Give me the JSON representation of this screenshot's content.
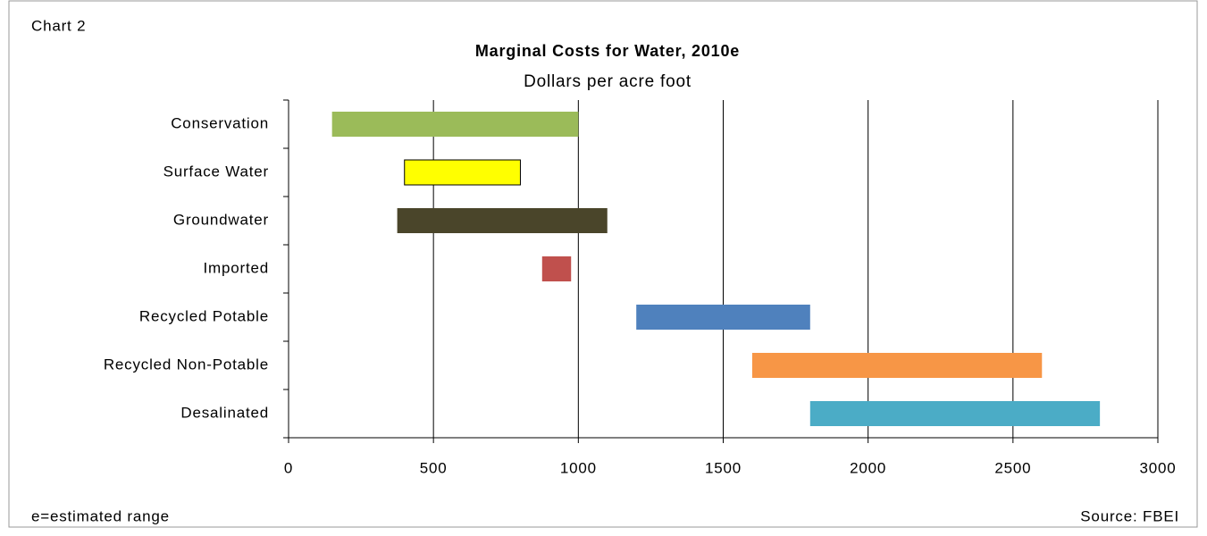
{
  "chart_data": {
    "type": "floating_bar",
    "label": "Chart 2",
    "title": "Marginal Costs for Water, 2010e",
    "subtitle": "Dollars per acre foot",
    "categories": [
      "Conservation",
      "Surface Water",
      "Groundwater",
      "Imported",
      "Recycled Potable",
      "Recycled Non-Potable",
      "Desalinated"
    ],
    "values": [
      [
        150,
        1000
      ],
      [
        400,
        800
      ],
      [
        375,
        1100
      ],
      [
        875,
        975
      ],
      [
        1200,
        1800
      ],
      [
        1600,
        2600
      ],
      [
        1800,
        2800
      ]
    ],
    "colors": [
      "#9bbb59",
      "#ffff00",
      "#4a452a",
      "#c0504d",
      "#4f81bd",
      "#f79646",
      "#4bacc6"
    ],
    "xlim": [
      0,
      3000
    ],
    "xticks": [
      0,
      500,
      1000,
      1500,
      2000,
      2500,
      3000
    ],
    "grid": true,
    "note": "e=estimated range",
    "source": "Source: FBEI"
  }
}
